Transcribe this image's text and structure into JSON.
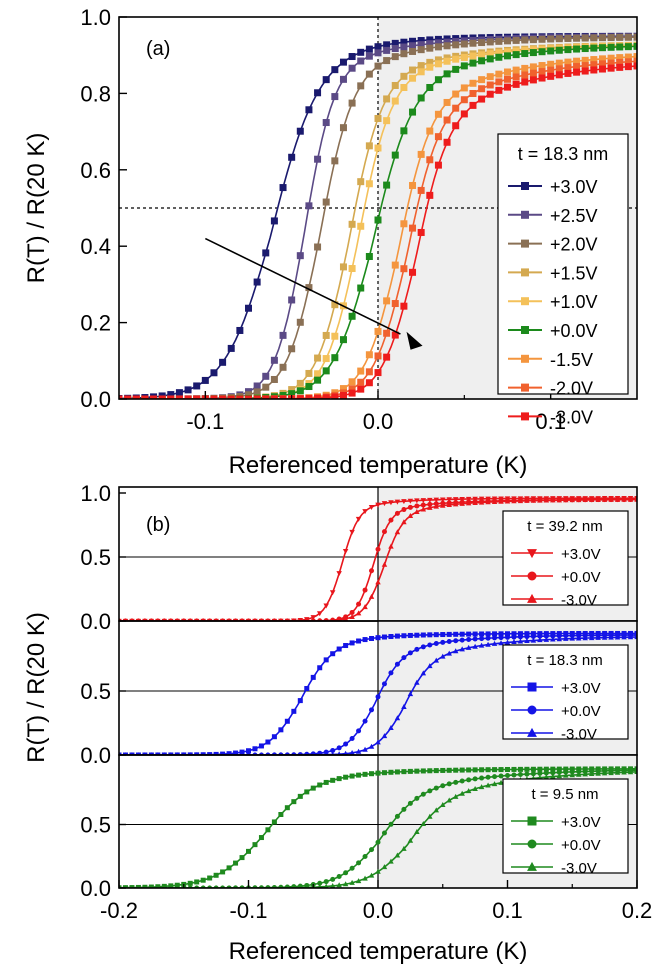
{
  "chart_data": [
    {
      "panel_label": "(a)",
      "type": "line",
      "xlabel": "Referenced temperature (K)",
      "ylabel": "R(T) / R(20 K)",
      "xlim": [
        -0.15,
        0.15
      ],
      "ylim": [
        0.0,
        1.0
      ],
      "xticks": [
        "-0.1",
        "0.0",
        "0.1"
      ],
      "yticks": [
        "0.0",
        "0.2",
        "0.4",
        "0.6",
        "0.8",
        "1.0"
      ],
      "legend_title": "t = 18.3 nm",
      "legend_position": "right",
      "guide_lines": {
        "x": 0.0,
        "y": 0.5,
        "style": "dotted"
      },
      "annotation": "arrow across curves from +3.0V toward -3.0V",
      "marker_spacing": 0.005,
      "series": [
        {
          "name": "+3.0V",
          "color": "#1a1a6e",
          "marker": "square",
          "Tc": -0.062,
          "width": 0.0135,
          "top": 0.86,
          "tail_amp": 0.09,
          "tail_w": 0.04
        },
        {
          "name": "+2.5V",
          "color": "#5b4a86",
          "marker": "square",
          "Tc": -0.043,
          "width": 0.0085,
          "top": 0.85,
          "tail_amp": 0.1,
          "tail_w": 0.045
        },
        {
          "name": "+2.0V",
          "color": "#8a7055",
          "marker": "square",
          "Tc": -0.034,
          "width": 0.0095,
          "top": 0.84,
          "tail_amp": 0.11,
          "tail_w": 0.05
        },
        {
          "name": "+1.5V",
          "color": "#d4a950",
          "marker": "square",
          "Tc": -0.017,
          "width": 0.0095,
          "top": 0.82,
          "tail_amp": 0.11,
          "tail_w": 0.05
        },
        {
          "name": "+1.0V",
          "color": "#f4c15a",
          "marker": "square",
          "Tc": -0.012,
          "width": 0.0095,
          "top": 0.81,
          "tail_amp": 0.12,
          "tail_w": 0.05
        },
        {
          "name": "+0.0V",
          "color": "#1c8a1c",
          "marker": "square",
          "Tc": -0.004,
          "width": 0.0115,
          "top": 0.78,
          "tail_amp": 0.15,
          "tail_w": 0.05
        },
        {
          "name": "-1.5V",
          "color": "#f4953e",
          "marker": "square",
          "Tc": 0.011,
          "width": 0.0095,
          "top": 0.74,
          "tail_amp": 0.17,
          "tail_w": 0.055
        },
        {
          "name": "-2.0V",
          "color": "#f0612e",
          "marker": "square",
          "Tc": 0.016,
          "width": 0.0095,
          "top": 0.72,
          "tail_amp": 0.18,
          "tail_w": 0.055
        },
        {
          "name": "-3.0V",
          "color": "#ee1c1c",
          "marker": "square",
          "Tc": 0.021,
          "width": 0.0095,
          "top": 0.7,
          "tail_amp": 0.19,
          "tail_w": 0.055
        }
      ]
    },
    {
      "panel_label": "(b)",
      "type": "line",
      "xlabel": "Referenced temperature (K)",
      "ylabel": "R(T) / R(20 K)",
      "xlim": [
        -0.2,
        0.2
      ],
      "xticks": [
        "-0.2",
        "-0.1",
        "0.0",
        "0.1",
        "0.2"
      ],
      "guide_lines": {
        "x": 0.0,
        "y": 0.5,
        "style": "solid"
      },
      "marker_spacing": 0.005,
      "subpanels": [
        {
          "legend_title": "t = 39.2 nm",
          "color": "#e8161c",
          "ylim": [
            0.0,
            1.0
          ],
          "yticks": [
            "0.0",
            "0.5",
            "1.0"
          ],
          "series": [
            {
              "name": "+3.0V",
              "marker": "triangle-down",
              "Tc": -0.028,
              "width": 0.0065,
              "top": 0.88,
              "tail_amp": 0.08,
              "tail_w": 0.04
            },
            {
              "name": "+0.0V",
              "marker": "circle",
              "Tc": -0.004,
              "width": 0.0065,
              "top": 0.85,
              "tail_amp": 0.1,
              "tail_w": 0.045
            },
            {
              "name": "-3.0V",
              "marker": "triangle-up",
              "Tc": 0.004,
              "width": 0.0075,
              "top": 0.82,
              "tail_amp": 0.13,
              "tail_w": 0.045
            }
          ]
        },
        {
          "legend_title": "t = 18.3 nm",
          "color": "#1414e6",
          "ylim": [
            0.0,
            1.0
          ],
          "yticks": [
            "0.0",
            "0.5"
          ],
          "series": [
            {
              "name": "+3.0V",
              "marker": "square",
              "Tc": -0.06,
              "width": 0.0125,
              "top": 0.85,
              "tail_amp": 0.1,
              "tail_w": 0.045
            },
            {
              "name": "+0.0V",
              "marker": "circle",
              "Tc": -0.003,
              "width": 0.0105,
              "top": 0.78,
              "tail_amp": 0.16,
              "tail_w": 0.05
            },
            {
              "name": "-3.0V",
              "marker": "triangle-up",
              "Tc": 0.019,
              "width": 0.0105,
              "top": 0.71,
              "tail_amp": 0.22,
              "tail_w": 0.055
            }
          ]
        },
        {
          "legend_title": "t = 9.5 nm",
          "color": "#1f8a1f",
          "ylim": [
            0.0,
            1.0
          ],
          "yticks": [
            "0.0",
            "0.5"
          ],
          "series": [
            {
              "name": "+3.0V",
              "marker": "square",
              "Tc": -0.088,
              "width": 0.0185,
              "top": 0.84,
              "tail_amp": 0.1,
              "tail_w": 0.07
            },
            {
              "name": "+0.0V",
              "marker": "circle",
              "Tc": 0.0,
              "width": 0.0155,
              "top": 0.72,
              "tail_amp": 0.22,
              "tail_w": 0.07
            },
            {
              "name": "-3.0V",
              "marker": "triangle-up",
              "Tc": 0.022,
              "width": 0.0155,
              "top": 0.66,
              "tail_amp": 0.28,
              "tail_w": 0.075
            }
          ]
        }
      ]
    }
  ]
}
